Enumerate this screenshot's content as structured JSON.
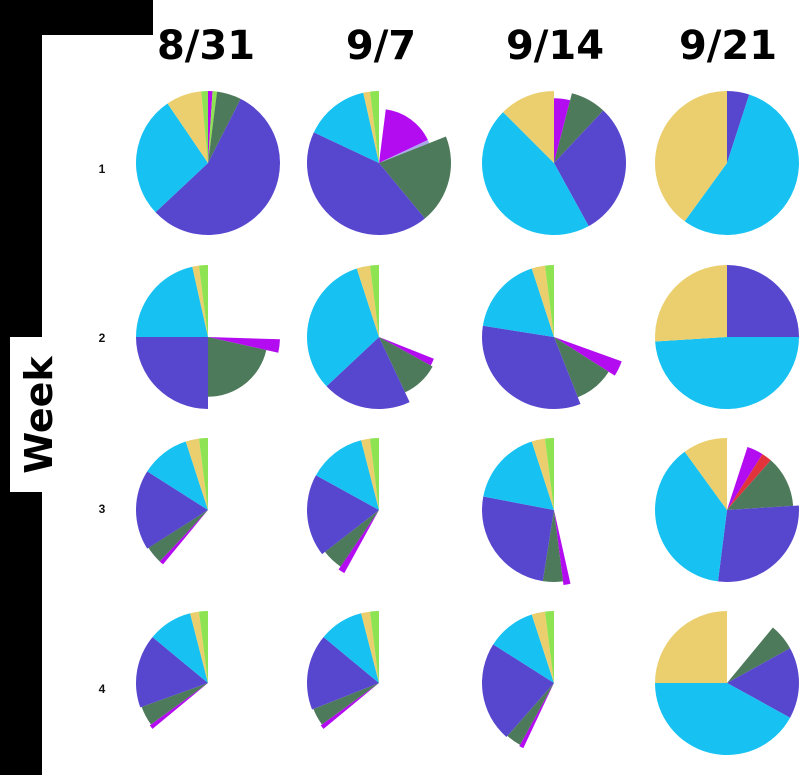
{
  "chart_data": {
    "type": "pie",
    "colors": {
      "yellow": "#EBCF6E",
      "magenta": "#B30CF0",
      "lavender": "#A8A8E8",
      "green": "#4E7A5C",
      "blue": "#5746CE",
      "cyan": "#17C2F2",
      "red": "#E0333C",
      "lime": "#8EE352"
    },
    "ylabel": "Week",
    "columns": [
      "8/31",
      "9/7",
      "9/14",
      "9/21"
    ],
    "rows": [
      "1",
      "2",
      "3",
      "4"
    ],
    "pies": [
      {
        "row": "1",
        "column": "8/31",
        "slices": [
          {
            "color": "magenta",
            "start": 0,
            "end": 0.01
          },
          {
            "color": "lime",
            "start": 0.01,
            "end": 0.02
          },
          {
            "color": "green",
            "start": 0.02,
            "end": 0.075
          },
          {
            "color": "blue",
            "start": 0.075,
            "end": 0.63
          },
          {
            "color": "cyan",
            "start": 0.63,
            "end": 0.905
          },
          {
            "color": "yellow",
            "start": 0.905,
            "end": 0.985
          },
          {
            "color": "lime",
            "start": 0.985,
            "end": 1.0
          }
        ]
      },
      {
        "row": "1",
        "column": "9/7",
        "slices": [
          {
            "color": "magenta",
            "start": 0.02,
            "end": 0.18,
            "scale": 0.75
          },
          {
            "color": "lavender",
            "start": 0.18,
            "end": 0.19,
            "scale": 0.75
          },
          {
            "color": "green",
            "start": 0.19,
            "end": 0.39
          },
          {
            "color": "blue",
            "start": 0.39,
            "end": 0.82
          },
          {
            "color": "cyan",
            "start": 0.82,
            "end": 0.965
          },
          {
            "color": "yellow",
            "start": 0.965,
            "end": 0.98
          },
          {
            "color": "lime",
            "start": 0.98,
            "end": 1.0
          }
        ]
      },
      {
        "row": "1",
        "column": "9/14",
        "slices": [
          {
            "color": "magenta",
            "start": 0,
            "end": 0.04,
            "scale": 0.9
          },
          {
            "color": "green",
            "start": 0.04,
            "end": 0.12
          },
          {
            "color": "blue",
            "start": 0.12,
            "end": 0.42
          },
          {
            "color": "cyan",
            "start": 0.42,
            "end": 0.875
          },
          {
            "color": "yellow",
            "start": 0.875,
            "end": 1.0
          }
        ]
      },
      {
        "row": "1",
        "column": "9/21",
        "slices": [
          {
            "color": "blue",
            "start": 0,
            "end": 0.05
          },
          {
            "color": "cyan",
            "start": 0.05,
            "end": 0.6
          },
          {
            "color": "yellow",
            "start": 0.6,
            "end": 1.0
          }
        ]
      },
      {
        "row": "2",
        "column": "8/31",
        "slices": [
          {
            "color": "magenta",
            "start": 0.255,
            "end": 0.285
          },
          {
            "color": "green",
            "start": 0.285,
            "end": 0.5,
            "scale": 0.83
          },
          {
            "color": "blue",
            "start": 0.5,
            "end": 0.75
          },
          {
            "color": "cyan",
            "start": 0.75,
            "end": 0.965
          },
          {
            "color": "yellow",
            "start": 0.965,
            "end": 0.98
          },
          {
            "color": "lime",
            "start": 0.98,
            "end": 1.0
          }
        ]
      },
      {
        "row": "2",
        "column": "9/7",
        "slices": [
          {
            "color": "magenta",
            "start": 0.31,
            "end": 0.33,
            "scale": 0.82
          },
          {
            "color": "green",
            "start": 0.33,
            "end": 0.43,
            "scale": 0.85
          },
          {
            "color": "blue",
            "start": 0.43,
            "end": 0.63
          },
          {
            "color": "cyan",
            "start": 0.63,
            "end": 0.95
          },
          {
            "color": "yellow",
            "start": 0.95,
            "end": 0.98
          },
          {
            "color": "lime",
            "start": 0.98,
            "end": 1.0
          }
        ]
      },
      {
        "row": "2",
        "column": "9/14",
        "slices": [
          {
            "color": "magenta",
            "start": 0.305,
            "end": 0.34,
            "scale": 1.0
          },
          {
            "color": "green",
            "start": 0.34,
            "end": 0.44,
            "scale": 0.9
          },
          {
            "color": "blue",
            "start": 0.44,
            "end": 0.775
          },
          {
            "color": "cyan",
            "start": 0.775,
            "end": 0.95
          },
          {
            "color": "yellow",
            "start": 0.95,
            "end": 0.98
          },
          {
            "color": "lime",
            "start": 0.98,
            "end": 1.0
          }
        ]
      },
      {
        "row": "2",
        "column": "9/21",
        "slices": [
          {
            "color": "blue",
            "start": 0,
            "end": 0.25
          },
          {
            "color": "cyan",
            "start": 0.25,
            "end": 0.74
          },
          {
            "color": "yellow",
            "start": 0.74,
            "end": 1.0
          }
        ]
      },
      {
        "row": "3",
        "column": "8/31",
        "slices": [
          {
            "color": "magenta",
            "start": 0.61,
            "end": 0.62,
            "scale": 0.98
          },
          {
            "color": "green",
            "start": 0.62,
            "end": 0.66,
            "scale": 0.98
          },
          {
            "color": "blue",
            "start": 0.66,
            "end": 0.84
          },
          {
            "color": "cyan",
            "start": 0.84,
            "end": 0.95
          },
          {
            "color": "yellow",
            "start": 0.95,
            "end": 0.98
          },
          {
            "color": "lime",
            "start": 0.98,
            "end": 1.0
          }
        ]
      },
      {
        "row": "3",
        "column": "9/7",
        "slices": [
          {
            "color": "magenta",
            "start": 0.58,
            "end": 0.595,
            "scale": 1.0
          },
          {
            "color": "green",
            "start": 0.595,
            "end": 0.645,
            "scale": 0.95
          },
          {
            "color": "blue",
            "start": 0.645,
            "end": 0.83
          },
          {
            "color": "cyan",
            "start": 0.83,
            "end": 0.96
          },
          {
            "color": "yellow",
            "start": 0.96,
            "end": 0.98
          },
          {
            "color": "lime",
            "start": 0.98,
            "end": 1.0
          }
        ]
      },
      {
        "row": "3",
        "column": "9/14",
        "slices": [
          {
            "color": "magenta",
            "start": 0.465,
            "end": 0.48,
            "scale": 1.05
          },
          {
            "color": "green",
            "start": 0.48,
            "end": 0.525,
            "scale": 1.0
          },
          {
            "color": "blue",
            "start": 0.525,
            "end": 0.78
          },
          {
            "color": "cyan",
            "start": 0.78,
            "end": 0.95
          },
          {
            "color": "yellow",
            "start": 0.95,
            "end": 0.98
          },
          {
            "color": "lime",
            "start": 0.98,
            "end": 1.0
          }
        ]
      },
      {
        "row": "3",
        "column": "9/21",
        "slices": [
          {
            "color": "magenta",
            "start": 0.05,
            "end": 0.09,
            "scale": 0.92
          },
          {
            "color": "red",
            "start": 0.09,
            "end": 0.115,
            "scale": 0.92
          },
          {
            "color": "green",
            "start": 0.115,
            "end": 0.24,
            "scale": 0.92
          },
          {
            "color": "blue",
            "start": 0.24,
            "end": 0.52
          },
          {
            "color": "cyan",
            "start": 0.52,
            "end": 0.9
          },
          {
            "color": "yellow",
            "start": 0.9,
            "end": 1.0
          }
        ]
      },
      {
        "row": "4",
        "column": "8/31",
        "slices": [
          {
            "color": "magenta",
            "start": 0.64,
            "end": 0.65,
            "scale": 1.0
          },
          {
            "color": "green",
            "start": 0.65,
            "end": 0.695,
            "scale": 0.98
          },
          {
            "color": "blue",
            "start": 0.695,
            "end": 0.86
          },
          {
            "color": "cyan",
            "start": 0.86,
            "end": 0.96
          },
          {
            "color": "yellow",
            "start": 0.96,
            "end": 0.98
          },
          {
            "color": "lime",
            "start": 0.98,
            "end": 1.0
          }
        ]
      },
      {
        "row": "4",
        "column": "9/7",
        "slices": [
          {
            "color": "magenta",
            "start": 0.64,
            "end": 0.65,
            "scale": 1.0
          },
          {
            "color": "green",
            "start": 0.65,
            "end": 0.69,
            "scale": 0.98
          },
          {
            "color": "blue",
            "start": 0.69,
            "end": 0.86
          },
          {
            "color": "cyan",
            "start": 0.86,
            "end": 0.96
          },
          {
            "color": "yellow",
            "start": 0.96,
            "end": 0.98
          },
          {
            "color": "lime",
            "start": 0.98,
            "end": 1.0
          }
        ]
      },
      {
        "row": "4",
        "column": "9/14",
        "slices": [
          {
            "color": "magenta",
            "start": 0.57,
            "end": 0.58,
            "scale": 1.0
          },
          {
            "color": "green",
            "start": 0.58,
            "end": 0.615,
            "scale": 0.98
          },
          {
            "color": "blue",
            "start": 0.615,
            "end": 0.84
          },
          {
            "color": "cyan",
            "start": 0.84,
            "end": 0.95
          },
          {
            "color": "yellow",
            "start": 0.95,
            "end": 0.98
          },
          {
            "color": "lime",
            "start": 0.98,
            "end": 1.0
          }
        ]
      },
      {
        "row": "4",
        "column": "9/21",
        "slices": [
          {
            "color": "green",
            "start": 0.11,
            "end": 0.17,
            "scale": 1.0
          },
          {
            "color": "blue",
            "start": 0.17,
            "end": 0.33
          },
          {
            "color": "cyan",
            "start": 0.33,
            "end": 0.75
          },
          {
            "color": "yellow",
            "start": 0.75,
            "end": 1.0
          }
        ]
      }
    ]
  }
}
